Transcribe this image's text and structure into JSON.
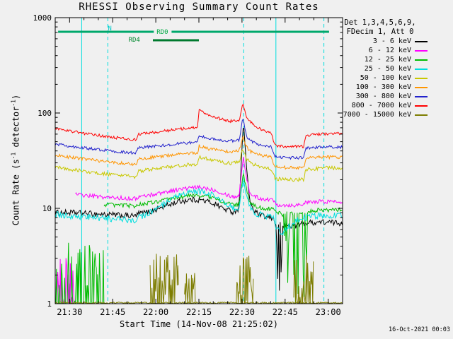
{
  "title": "RHESSI Observing Summary Count Rates",
  "xlabel": "Start Time (14-Nov-08 21:25:02)",
  "ylabel": {
    "pre": "Count Rate (s",
    "sup1": "-1",
    "mid": " detector",
    "sup2": "-1",
    "post": ")"
  },
  "timestamp": "16-Oct-2021 00:03",
  "legend": {
    "header_line1": "Det 1,3,4,5,6,9,",
    "header_line2": "FDecim 1, Att 0",
    "items": [
      {
        "label": "3 - 6 keV",
        "color": "#000000"
      },
      {
        "label": "6 - 12 keV",
        "color": "#ff00ff"
      },
      {
        "label": "12 - 25 keV",
        "color": "#00bb00"
      },
      {
        "label": "25 - 50 keV",
        "color": "#00dede"
      },
      {
        "label": "50 - 100 keV",
        "color": "#c8c800"
      },
      {
        "label": "100 - 300 keV",
        "color": "#ff9500"
      },
      {
        "label": "300 - 800 keV",
        "color": "#2222cc"
      },
      {
        "label": "800 - 7000 keV",
        "color": "#ff0000"
      },
      {
        "label": "7000 - 15000 keV",
        "color": "#7d7d00"
      }
    ]
  },
  "chart_data": {
    "type": "line",
    "y_axis": {
      "scale": "log",
      "range": [
        1,
        1000
      ],
      "tick_labels": [
        "1",
        "10",
        "100",
        "1000"
      ]
    },
    "x_axis": {
      "start_label": "21:25:02",
      "tick_labels": [
        "21:30",
        "21:45",
        "22:00",
        "22:15",
        "22:30",
        "22:45",
        "23:00"
      ],
      "tick_minutes": [
        5,
        20,
        35,
        50,
        65,
        80,
        95
      ],
      "range_minutes": [
        0,
        100
      ],
      "minor_step": 5
    },
    "event_color": "#00dede",
    "event_lines": [
      {
        "t": 9.2,
        "style": "solid"
      },
      {
        "t": 18.3,
        "style": "dashed"
      },
      {
        "t": 65.6,
        "style": "dashed"
      },
      {
        "t": 76.8,
        "style": "solid"
      },
      {
        "t": 93.5,
        "style": "dashed"
      }
    ],
    "flag_bars": [
      {
        "row": 0,
        "color": "#00a86b",
        "segments": [
          [
            1,
            34.3
          ],
          [
            40.5,
            95.3
          ]
        ]
      },
      {
        "row": 1,
        "color": "#007a2e",
        "segments": [
          [
            34,
            50
          ]
        ]
      }
    ],
    "flag_labels": [
      {
        "text": "N",
        "color": "#00cccc",
        "t": 19,
        "row": 0,
        "dy": -2
      },
      {
        "text": "RD0",
        "color": "#00aa44",
        "t": 37.3,
        "row": 0,
        "dy": 3
      },
      {
        "text": "RD4",
        "color": "#00882e",
        "t": 27.5,
        "row": 1,
        "dy": 2
      }
    ],
    "series": [
      {
        "name": "3 - 6 keV",
        "color": "#000000",
        "noise": 0.07,
        "dropouts": [
          [
            76.8,
            79.5
          ]
        ],
        "points": [
          [
            0,
            9
          ],
          [
            6,
            9
          ],
          [
            12,
            8.8
          ],
          [
            18,
            8.6
          ],
          [
            24,
            8.4
          ],
          [
            28,
            8.3
          ],
          [
            29,
            8.8
          ],
          [
            33,
            9.2
          ],
          [
            38,
            10.5
          ],
          [
            43,
            11.8
          ],
          [
            47,
            12.3
          ],
          [
            50,
            12.3
          ],
          [
            53,
            11.8
          ],
          [
            56,
            11
          ],
          [
            59,
            9.8
          ],
          [
            62,
            9.2
          ],
          [
            64,
            10
          ],
          [
            64.8,
            35
          ],
          [
            65.5,
            80
          ],
          [
            66.3,
            35
          ],
          [
            67.5,
            13
          ],
          [
            69,
            9.5
          ],
          [
            71,
            8.5
          ],
          [
            74,
            8
          ],
          [
            76,
            7.8
          ],
          [
            77,
            6.8
          ],
          [
            80,
            6.6
          ],
          [
            84,
            6.6
          ],
          [
            87,
            7
          ],
          [
            92,
            7.2
          ],
          [
            100,
            7
          ]
        ]
      },
      {
        "name": "6 - 12 keV",
        "color": "#ff00ff",
        "noise": 0.05,
        "comb": [
          [
            0,
            7,
            3.2
          ]
        ],
        "points": [
          [
            7,
            14
          ],
          [
            12,
            13.5
          ],
          [
            18,
            13
          ],
          [
            24,
            12.8
          ],
          [
            28,
            12.6
          ],
          [
            29,
            13.2
          ],
          [
            33,
            13.8
          ],
          [
            38,
            14.8
          ],
          [
            43,
            15.8
          ],
          [
            47,
            16.4
          ],
          [
            50,
            16.6
          ],
          [
            53,
            16.2
          ],
          [
            56,
            15.4
          ],
          [
            59,
            14.2
          ],
          [
            62,
            13.2
          ],
          [
            64,
            13.6
          ],
          [
            64.8,
            24
          ],
          [
            65.5,
            34
          ],
          [
            66.3,
            24
          ],
          [
            67.5,
            15
          ],
          [
            69,
            13.5
          ],
          [
            71,
            12.8
          ],
          [
            74,
            12.4
          ],
          [
            76,
            12.2
          ],
          [
            77,
            11
          ],
          [
            80,
            10.8
          ],
          [
            84,
            10.8
          ],
          [
            87,
            11.4
          ],
          [
            92,
            11.8
          ],
          [
            100,
            11.8
          ]
        ]
      },
      {
        "name": "12 - 25 keV",
        "color": "#00bb00",
        "noise": 0.05,
        "comb": [
          [
            0,
            17,
            4.5
          ]
        ],
        "dropouts": [
          [
            78.5,
            88
          ]
        ],
        "points": [
          [
            17,
            11
          ],
          [
            22,
            10.8
          ],
          [
            28,
            10.6
          ],
          [
            29,
            11
          ],
          [
            33,
            11.4
          ],
          [
            38,
            12.2
          ],
          [
            43,
            13
          ],
          [
            47,
            13.6
          ],
          [
            50,
            13.7
          ],
          [
            53,
            13.3
          ],
          [
            56,
            12.6
          ],
          [
            59,
            11.6
          ],
          [
            62,
            10.8
          ],
          [
            64,
            11
          ],
          [
            64.8,
            17
          ],
          [
            65.5,
            23
          ],
          [
            66.3,
            17
          ],
          [
            67.5,
            11.8
          ],
          [
            69,
            10.8
          ],
          [
            71,
            10.2
          ],
          [
            74,
            9.9
          ],
          [
            76,
            9.7
          ],
          [
            77,
            9
          ],
          [
            80,
            8.9
          ],
          [
            84,
            8.9
          ],
          [
            87,
            9.3
          ],
          [
            92,
            9.6
          ],
          [
            100,
            9.6
          ]
        ]
      },
      {
        "name": "25 - 50 keV",
        "color": "#00dede",
        "noise": 0.08,
        "points": [
          [
            0,
            8.6
          ],
          [
            6,
            8.3
          ],
          [
            12,
            8
          ],
          [
            18,
            7.8
          ],
          [
            24,
            7.6
          ],
          [
            28,
            7.5
          ],
          [
            29,
            8
          ],
          [
            33,
            9
          ],
          [
            38,
            11
          ],
          [
            43,
            13.5
          ],
          [
            47,
            14.8
          ],
          [
            50,
            15
          ],
          [
            53,
            14.4
          ],
          [
            56,
            13.2
          ],
          [
            59,
            11.4
          ],
          [
            62,
            9.8
          ],
          [
            64,
            10.4
          ],
          [
            64.8,
            15
          ],
          [
            65.5,
            20
          ],
          [
            66.3,
            15
          ],
          [
            67.5,
            10.5
          ],
          [
            69,
            9.2
          ],
          [
            71,
            8.6
          ],
          [
            74,
            8.2
          ],
          [
            76,
            8
          ],
          [
            77,
            6
          ],
          [
            79,
            5.6
          ],
          [
            81,
            6.4
          ],
          [
            84,
            7.4
          ],
          [
            87,
            8
          ],
          [
            92,
            8.4
          ],
          [
            100,
            8.5
          ]
        ]
      },
      {
        "name": "50 - 100 keV",
        "color": "#c8c800",
        "noise": 0.045,
        "points": [
          [
            0,
            27
          ],
          [
            6,
            25.5
          ],
          [
            12,
            24
          ],
          [
            18,
            22.8
          ],
          [
            24,
            21.8
          ],
          [
            28,
            21.3
          ],
          [
            29,
            24.5
          ],
          [
            33,
            25.5
          ],
          [
            38,
            26.8
          ],
          [
            43,
            28
          ],
          [
            47,
            28.8
          ],
          [
            49.6,
            29
          ],
          [
            50,
            35
          ],
          [
            52,
            33.5
          ],
          [
            55,
            31.8
          ],
          [
            58,
            30.5
          ],
          [
            61,
            29.8
          ],
          [
            64,
            30.5
          ],
          [
            65.3,
            42
          ],
          [
            66.5,
            33
          ],
          [
            68,
            30
          ],
          [
            70,
            28
          ],
          [
            72,
            26.8
          ],
          [
            75,
            26
          ],
          [
            76.5,
            20.5
          ],
          [
            80,
            20
          ],
          [
            86.5,
            20
          ],
          [
            87.2,
            25.5
          ],
          [
            90,
            26
          ],
          [
            94,
            26.5
          ],
          [
            100,
            26.5
          ]
        ]
      },
      {
        "name": "100 - 300 keV",
        "color": "#ff9500",
        "noise": 0.04,
        "points": [
          [
            0,
            36
          ],
          [
            6,
            34
          ],
          [
            12,
            32.3
          ],
          [
            18,
            30.8
          ],
          [
            24,
            29.5
          ],
          [
            28,
            29
          ],
          [
            29,
            33
          ],
          [
            33,
            34
          ],
          [
            38,
            35.5
          ],
          [
            43,
            37
          ],
          [
            47,
            38
          ],
          [
            49.6,
            38.3
          ],
          [
            50,
            45
          ],
          [
            52,
            43
          ],
          [
            55,
            41.3
          ],
          [
            58,
            40
          ],
          [
            61,
            39.3
          ],
          [
            64,
            40
          ],
          [
            65.3,
            56
          ],
          [
            66.5,
            44
          ],
          [
            68,
            39.5
          ],
          [
            70,
            37
          ],
          [
            72,
            35.5
          ],
          [
            75,
            34.6
          ],
          [
            76.5,
            27.5
          ],
          [
            80,
            26.8
          ],
          [
            86.5,
            26.8
          ],
          [
            87.2,
            33.5
          ],
          [
            90,
            34
          ],
          [
            94,
            34.5
          ],
          [
            100,
            34.5
          ]
        ]
      },
      {
        "name": "300 - 800 keV",
        "color": "#2222cc",
        "noise": 0.035,
        "points": [
          [
            0,
            47
          ],
          [
            6,
            44.5
          ],
          [
            12,
            42.3
          ],
          [
            18,
            40.3
          ],
          [
            24,
            38.7
          ],
          [
            28,
            38
          ],
          [
            29,
            43
          ],
          [
            33,
            44.3
          ],
          [
            38,
            46
          ],
          [
            43,
            47.8
          ],
          [
            47,
            49
          ],
          [
            49.6,
            49.4
          ],
          [
            50,
            58
          ],
          [
            52,
            55.5
          ],
          [
            55,
            53.3
          ],
          [
            58,
            51.6
          ],
          [
            61,
            50.7
          ],
          [
            64,
            51.8
          ],
          [
            65.3,
            90
          ],
          [
            66.5,
            57
          ],
          [
            68,
            51
          ],
          [
            70,
            47.5
          ],
          [
            72,
            45.5
          ],
          [
            75,
            44.3
          ],
          [
            76.5,
            35
          ],
          [
            80,
            34
          ],
          [
            86.5,
            34
          ],
          [
            87.2,
            42.5
          ],
          [
            90,
            43.3
          ],
          [
            94,
            44
          ],
          [
            100,
            44
          ]
        ]
      },
      {
        "name": "800 - 7000 keV",
        "color": "#ff0000",
        "noise": 0.035,
        "points": [
          [
            0,
            68
          ],
          [
            6,
            64
          ],
          [
            12,
            60
          ],
          [
            18,
            56.5
          ],
          [
            24,
            53.8
          ],
          [
            28,
            52.5
          ],
          [
            29,
            60
          ],
          [
            33,
            62
          ],
          [
            38,
            64.8
          ],
          [
            43,
            67.8
          ],
          [
            47,
            69.8
          ],
          [
            49.6,
            70.5
          ],
          [
            50,
            108
          ],
          [
            52,
            100
          ],
          [
            55,
            92
          ],
          [
            58,
            86
          ],
          [
            61,
            82
          ],
          [
            64,
            84
          ],
          [
            65.3,
            128
          ],
          [
            66.5,
            92
          ],
          [
            68,
            80
          ],
          [
            70,
            72
          ],
          [
            72,
            66
          ],
          [
            75,
            62.5
          ],
          [
            76.5,
            46
          ],
          [
            80,
            44.5
          ],
          [
            86.5,
            44.5
          ],
          [
            87.2,
            58
          ],
          [
            90,
            59.5
          ],
          [
            94,
            60.5
          ],
          [
            100,
            61
          ]
        ]
      },
      {
        "name": "7000 - 15000 keV",
        "color": "#7d7d00",
        "noise": 0.02,
        "comb": [
          [
            33,
            43,
            3.8
          ],
          [
            45,
            49,
            2.2
          ],
          [
            63,
            69,
            4.2
          ],
          [
            83,
            90,
            3.2
          ]
        ],
        "points": [
          [
            0,
            1.02
          ],
          [
            100,
            1.02
          ]
        ]
      }
    ]
  }
}
